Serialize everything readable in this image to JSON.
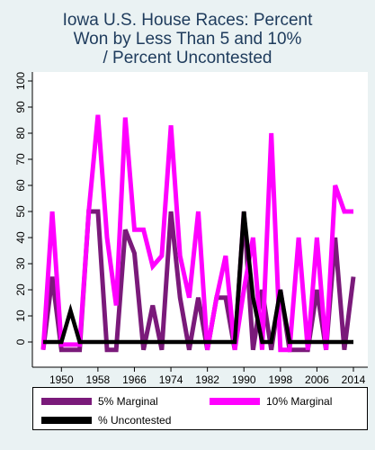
{
  "chart_data": {
    "type": "line",
    "title_lines": [
      "Iowa U.S. House Races: Percent",
      "Won by Less Than 5 and 10%",
      "/ Percent Uncontested"
    ],
    "xlabel": "",
    "ylabel": "",
    "xlim": [
      1946,
      2014
    ],
    "ylim": [
      -5,
      100
    ],
    "x_ticks": [
      1950,
      1958,
      1966,
      1974,
      1982,
      1990,
      1998,
      2006,
      2014
    ],
    "y_ticks": [
      0,
      10,
      20,
      30,
      40,
      50,
      60,
      70,
      80,
      90,
      100
    ],
    "grid": false,
    "legend_position": "bottom",
    "series": [
      {
        "name": "5% Marginal",
        "color": "#7a1a7a",
        "x": [
          1946,
          1948,
          1950,
          1952,
          1954,
          1956,
          1958,
          1960,
          1962,
          1964,
          1966,
          1968,
          1970,
          1972,
          1974,
          1976,
          1978,
          1980,
          1982,
          1984,
          1986,
          1988,
          1990,
          1992,
          1994,
          1996,
          1998,
          2000,
          2002,
          2004,
          2006,
          2008,
          2010,
          2012,
          2014
        ],
        "values": [
          -3,
          25,
          -3,
          -3,
          -3,
          50,
          50,
          -3,
          -3,
          43,
          34,
          -3,
          14,
          -3,
          50,
          17,
          -3,
          17,
          -3,
          17,
          17,
          -3,
          50,
          -3,
          20,
          -3,
          20,
          -3,
          -3,
          -3,
          20,
          -3,
          40,
          -3,
          25
        ]
      },
      {
        "name": "10% Marginal",
        "color": "#ff00ff",
        "x": [
          1946,
          1948,
          1950,
          1952,
          1954,
          1956,
          1958,
          1960,
          1962,
          1964,
          1966,
          1968,
          1970,
          1972,
          1974,
          1976,
          1978,
          1980,
          1982,
          1984,
          1986,
          1988,
          1990,
          1992,
          1994,
          1996,
          1998,
          2000,
          2002,
          2004,
          2006,
          2008,
          2010,
          2012,
          2014
        ],
        "values": [
          -3,
          50,
          -1,
          -1,
          -1,
          50,
          87,
          40,
          14,
          86,
          43,
          43,
          29,
          33,
          83,
          33,
          17,
          50,
          -3,
          17,
          33,
          -3,
          20,
          40,
          -3,
          80,
          -3,
          -3,
          40,
          -3,
          40,
          -3,
          60,
          50,
          50
        ]
      },
      {
        "name": "% Uncontested",
        "color": "#000000",
        "x": [
          1946,
          1948,
          1950,
          1952,
          1954,
          1956,
          1958,
          1960,
          1962,
          1964,
          1966,
          1968,
          1970,
          1972,
          1974,
          1976,
          1978,
          1980,
          1982,
          1984,
          1986,
          1988,
          1990,
          1992,
          1994,
          1996,
          1998,
          2000,
          2002,
          2004,
          2006,
          2008,
          2010,
          2012,
          2014
        ],
        "values": [
          0,
          0,
          0,
          12,
          0,
          0,
          0,
          0,
          0,
          0,
          0,
          0,
          0,
          0,
          0,
          0,
          0,
          0,
          0,
          0,
          0,
          0,
          50,
          17,
          0,
          0,
          20,
          0,
          0,
          0,
          0,
          0,
          0,
          0,
          0
        ]
      }
    ]
  }
}
